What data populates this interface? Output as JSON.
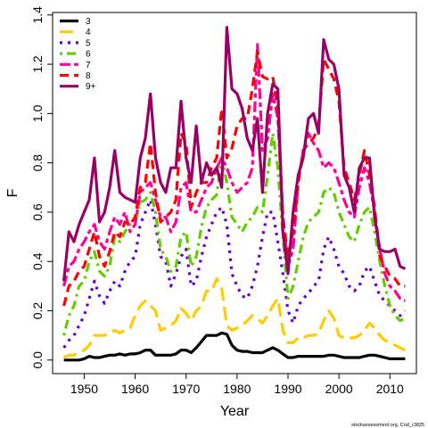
{
  "chart_data": {
    "type": "line",
    "title": "",
    "xlabel": "Year",
    "ylabel": "F",
    "xlim": [
      1943.8,
      2015.2
    ],
    "ylim": [
      -0.055,
      1.41
    ],
    "xticks": [
      1950,
      1960,
      1970,
      1980,
      1990,
      2000,
      2010
    ],
    "yticks": [
      0.0,
      0.2,
      0.4,
      0.6,
      0.8,
      1.0,
      1.2,
      1.4
    ],
    "ytick_labels": [
      "0.0",
      "0.2",
      "0.4",
      "0.6",
      "0.8",
      "1.0",
      "1.2",
      "1.4"
    ],
    "grid": false,
    "legend_position": "top-left",
    "x": [
      1946,
      1947,
      1948,
      1949,
      1950,
      1951,
      1952,
      1953,
      1954,
      1955,
      1956,
      1957,
      1958,
      1959,
      1960,
      1961,
      1962,
      1963,
      1964,
      1965,
      1966,
      1967,
      1968,
      1969,
      1970,
      1971,
      1972,
      1973,
      1974,
      1975,
      1976,
      1977,
      1978,
      1979,
      1980,
      1981,
      1982,
      1983,
      1984,
      1985,
      1986,
      1987,
      1988,
      1989,
      1990,
      1991,
      1992,
      1993,
      1994,
      1995,
      1996,
      1997,
      1998,
      1999,
      2000,
      2001,
      2002,
      2003,
      2004,
      2005,
      2006,
      2007,
      2008,
      2009,
      2010,
      2011,
      2012,
      2013
    ],
    "series": [
      {
        "name": "3",
        "color": "#000000",
        "dash": "solid",
        "width": 3.2,
        "values": [
          0.0,
          0.0,
          0.0,
          0.0,
          0.005,
          0.015,
          0.01,
          0.01,
          0.015,
          0.02,
          0.02,
          0.025,
          0.02,
          0.025,
          0.025,
          0.03,
          0.04,
          0.04,
          0.02,
          0.02,
          0.02,
          0.02,
          0.025,
          0.04,
          0.04,
          0.03,
          0.05,
          0.075,
          0.1,
          0.1,
          0.1,
          0.11,
          0.105,
          0.06,
          0.04,
          0.035,
          0.035,
          0.03,
          0.03,
          0.03,
          0.04,
          0.05,
          0.04,
          0.025,
          0.01,
          0.01,
          0.015,
          0.015,
          0.015,
          0.015,
          0.015,
          0.015,
          0.02,
          0.02,
          0.015,
          0.01,
          0.01,
          0.01,
          0.01,
          0.015,
          0.02,
          0.02,
          0.015,
          0.01,
          0.005,
          0.005,
          0.005,
          0.005
        ]
      },
      {
        "name": "4",
        "color": "#FFCC00",
        "dash": "longdash",
        "width": 3.2,
        "values": [
          0.01,
          0.02,
          0.02,
          0.03,
          0.04,
          0.06,
          0.1,
          0.1,
          0.1,
          0.11,
          0.12,
          0.11,
          0.12,
          0.13,
          0.18,
          0.22,
          0.24,
          0.22,
          0.2,
          0.12,
          0.13,
          0.14,
          0.16,
          0.21,
          0.19,
          0.16,
          0.2,
          0.22,
          0.28,
          0.28,
          0.33,
          0.29,
          0.14,
          0.12,
          0.13,
          0.14,
          0.16,
          0.18,
          0.17,
          0.15,
          0.18,
          0.22,
          0.25,
          0.12,
          0.07,
          0.07,
          0.09,
          0.09,
          0.1,
          0.1,
          0.11,
          0.16,
          0.2,
          0.17,
          0.1,
          0.09,
          0.09,
          0.09,
          0.1,
          0.12,
          0.15,
          0.13,
          0.1,
          0.08,
          0.07,
          0.06,
          0.05,
          0.04
        ]
      },
      {
        "name": "5",
        "color": "#6600CC",
        "dash": "dotted",
        "width": 3.2,
        "values": [
          0.05,
          0.08,
          0.1,
          0.14,
          0.18,
          0.25,
          0.32,
          0.26,
          0.23,
          0.28,
          0.32,
          0.3,
          0.36,
          0.4,
          0.42,
          0.55,
          0.6,
          0.65,
          0.55,
          0.42,
          0.4,
          0.3,
          0.35,
          0.42,
          0.45,
          0.3,
          0.32,
          0.42,
          0.5,
          0.55,
          0.6,
          0.62,
          0.55,
          0.35,
          0.3,
          0.26,
          0.25,
          0.3,
          0.38,
          0.5,
          0.6,
          0.6,
          0.48,
          0.35,
          0.2,
          0.15,
          0.22,
          0.25,
          0.27,
          0.3,
          0.32,
          0.45,
          0.5,
          0.45,
          0.38,
          0.35,
          0.3,
          0.28,
          0.3,
          0.36,
          0.38,
          0.32,
          0.26,
          0.24,
          0.22,
          0.2,
          0.18,
          0.2
        ]
      },
      {
        "name": "6",
        "color": "#66CC00",
        "dash": "dashdot",
        "width": 3.2,
        "values": [
          0.1,
          0.18,
          0.22,
          0.3,
          0.32,
          0.4,
          0.44,
          0.36,
          0.34,
          0.38,
          0.5,
          0.48,
          0.52,
          0.55,
          0.56,
          0.64,
          0.65,
          0.68,
          0.6,
          0.45,
          0.42,
          0.36,
          0.38,
          0.5,
          0.52,
          0.38,
          0.42,
          0.54,
          0.62,
          0.65,
          0.67,
          0.82,
          0.72,
          0.58,
          0.55,
          0.52,
          0.56,
          0.58,
          0.62,
          0.6,
          0.75,
          0.92,
          0.78,
          0.5,
          0.25,
          0.3,
          0.4,
          0.5,
          0.56,
          0.58,
          0.6,
          0.68,
          0.7,
          0.68,
          0.6,
          0.55,
          0.5,
          0.48,
          0.55,
          0.6,
          0.62,
          0.52,
          0.4,
          0.3,
          0.22,
          0.18,
          0.16,
          0.17
        ]
      },
      {
        "name": "7",
        "color": "#FF0099",
        "dash": "twodash",
        "width": 3.2,
        "values": [
          0.3,
          0.38,
          0.4,
          0.45,
          0.48,
          0.52,
          0.55,
          0.48,
          0.45,
          0.52,
          0.58,
          0.55,
          0.6,
          0.52,
          0.55,
          0.68,
          0.7,
          0.72,
          0.65,
          0.58,
          0.58,
          0.52,
          0.56,
          0.7,
          0.72,
          0.6,
          0.6,
          0.65,
          0.7,
          0.72,
          0.78,
          0.82,
          0.78,
          0.72,
          0.68,
          0.7,
          0.72,
          0.78,
          1.28,
          0.85,
          0.9,
          1.08,
          0.98,
          0.58,
          0.38,
          0.45,
          0.72,
          0.85,
          0.92,
          0.88,
          0.85,
          0.78,
          0.8,
          0.78,
          0.72,
          0.65,
          0.6,
          0.58,
          0.7,
          0.78,
          0.72,
          0.6,
          0.45,
          0.35,
          0.3,
          0.28,
          0.25,
          0.24
        ]
      },
      {
        "name": "8",
        "color": "#FF0000",
        "dash": "dashed",
        "width": 3.2,
        "values": [
          0.22,
          0.3,
          0.32,
          0.36,
          0.38,
          0.45,
          0.52,
          0.42,
          0.38,
          0.44,
          0.52,
          0.5,
          0.56,
          0.55,
          0.58,
          0.7,
          0.72,
          0.88,
          0.68,
          0.56,
          0.58,
          0.6,
          0.65,
          0.92,
          0.88,
          0.62,
          0.68,
          0.72,
          0.72,
          0.78,
          0.82,
          1.02,
          0.82,
          0.86,
          0.95,
          0.98,
          0.98,
          1.1,
          1.25,
          1.15,
          1.14,
          1.15,
          1.02,
          0.58,
          0.42,
          0.52,
          0.72,
          0.85,
          0.88,
          0.9,
          0.95,
          1.22,
          1.18,
          1.14,
          1.05,
          0.78,
          0.72,
          0.65,
          0.75,
          0.85,
          0.75,
          0.62,
          0.42,
          0.38,
          0.34,
          0.33,
          0.3,
          0.3
        ]
      },
      {
        "name": "9+",
        "color": "#990066",
        "dash": "solid",
        "width": 3.2,
        "values": [
          0.32,
          0.52,
          0.48,
          0.55,
          0.6,
          0.65,
          0.82,
          0.56,
          0.6,
          0.7,
          0.85,
          0.68,
          0.66,
          0.65,
          0.64,
          0.82,
          0.9,
          1.08,
          0.82,
          0.72,
          0.68,
          0.78,
          0.78,
          1.05,
          0.82,
          0.72,
          0.95,
          0.72,
          0.8,
          0.75,
          0.78,
          0.7,
          1.35,
          1.1,
          1.08,
          1.02,
          0.9,
          0.85,
          0.98,
          0.68,
          1.0,
          1.12,
          1.1,
          0.52,
          0.35,
          0.6,
          0.75,
          0.82,
          0.98,
          1.0,
          0.92,
          1.3,
          1.22,
          1.2,
          1.1,
          0.75,
          0.7,
          0.6,
          0.78,
          0.82,
          0.82,
          0.58,
          0.45,
          0.44,
          0.44,
          0.45,
          0.38,
          0.37
        ]
      }
    ],
    "credit": "stockassessment.org, Cod_r3825"
  }
}
